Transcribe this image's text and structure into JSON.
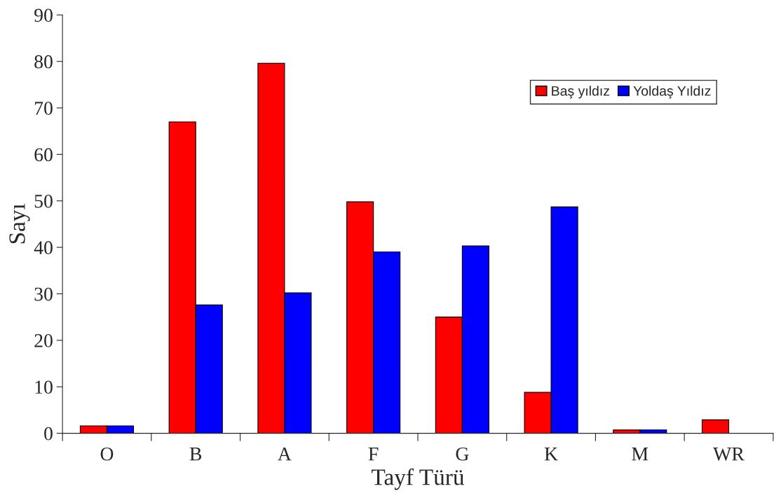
{
  "chart_data": {
    "type": "bar",
    "xlabel": "Tayf Türü",
    "ylabel": "Sayı",
    "categories": [
      "O",
      "B",
      "A",
      "F",
      "G",
      "K",
      "M",
      "WR"
    ],
    "series": [
      {
        "name": "Baş yıldız",
        "color": "#ff0000",
        "values": [
          1.6,
          67,
          79.6,
          49.8,
          25,
          8.8,
          0.7,
          2.9
        ]
      },
      {
        "name": "Yoldaş Yıldız",
        "color": "#0000ff",
        "values": [
          1.6,
          27.6,
          30.2,
          39,
          40.3,
          48.7,
          0.7,
          null
        ]
      }
    ],
    "ylim": [
      0,
      90
    ],
    "yticks": [
      0,
      10,
      20,
      30,
      40,
      50,
      60,
      70,
      80,
      90
    ],
    "grid": false,
    "legend": "top right"
  }
}
